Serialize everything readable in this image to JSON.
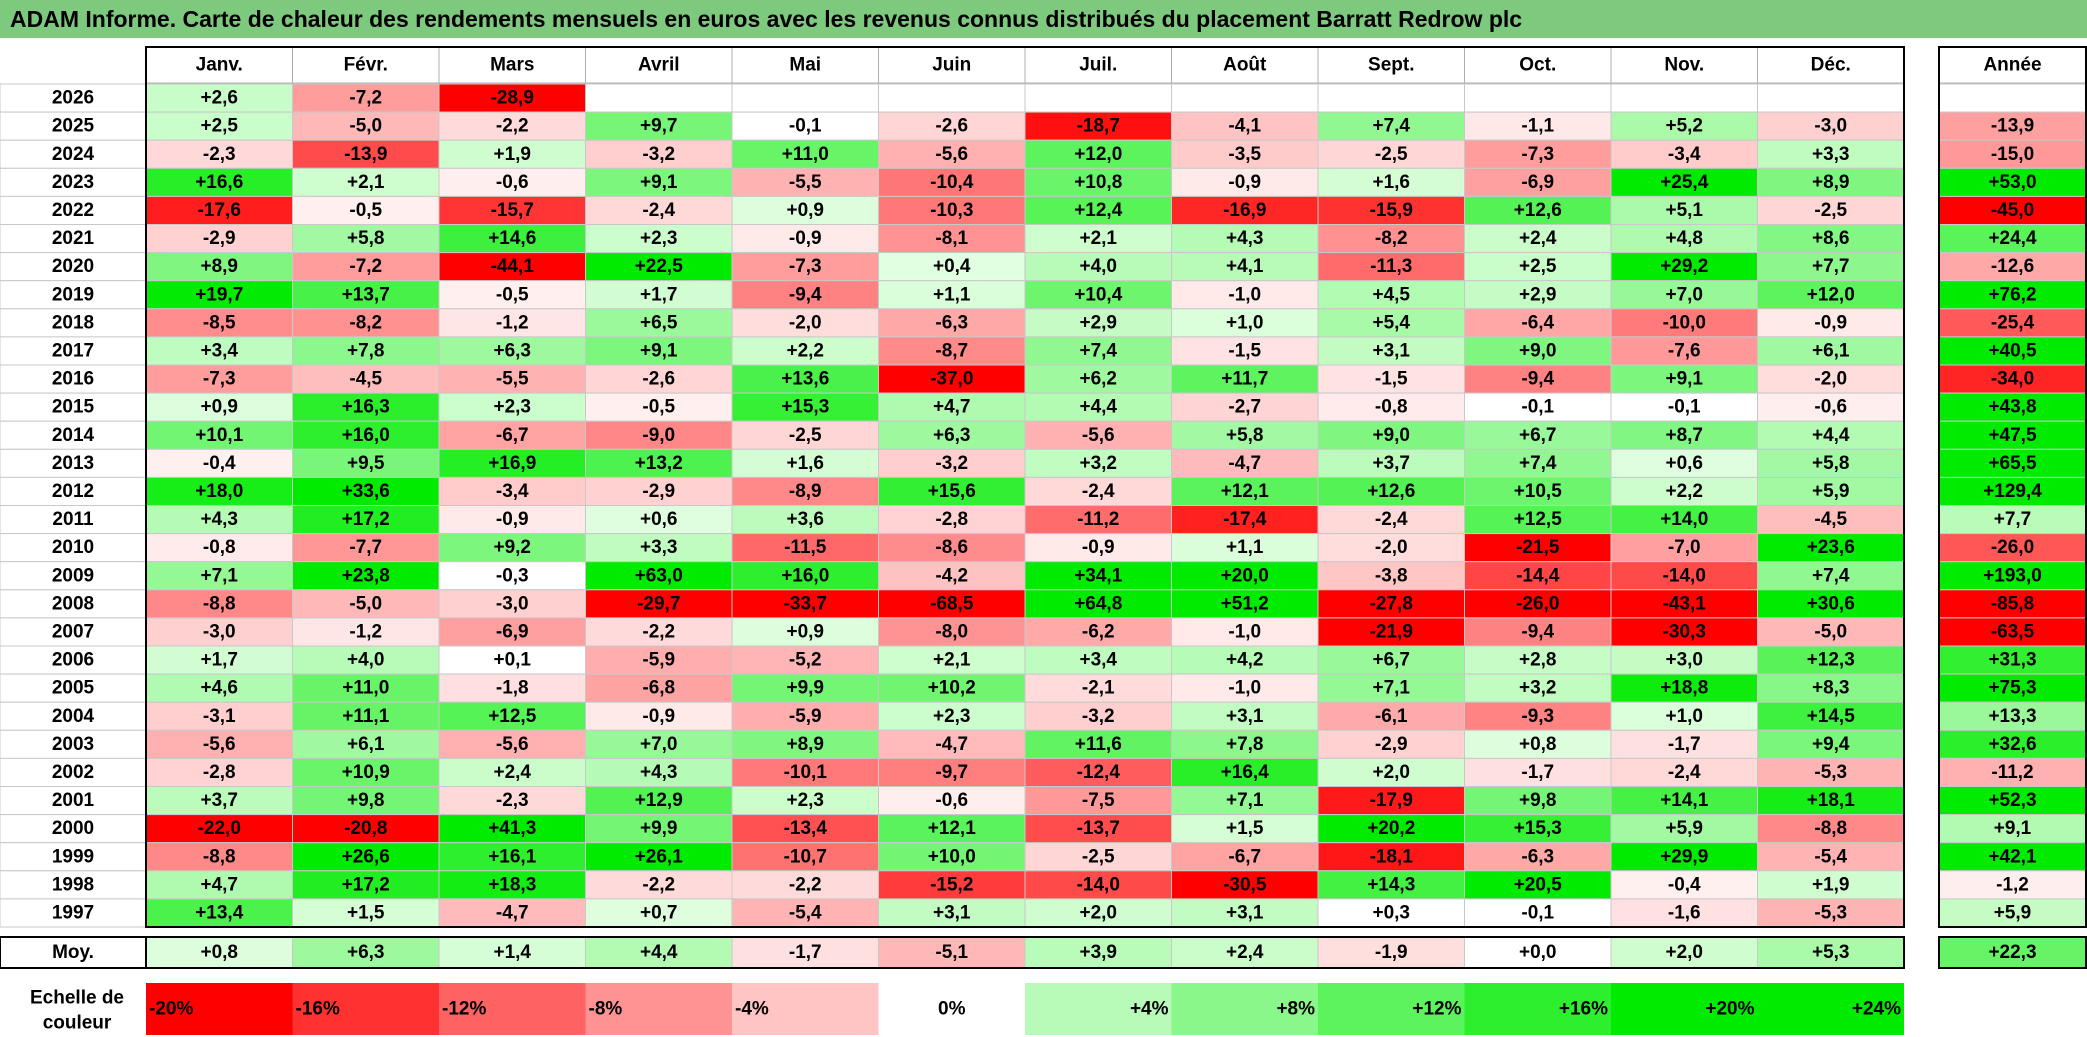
{
  "title": "ADAM Informe. Carte de chaleur des rendements mensuels en euros avec les revenus connus distribués du placement Barratt Redrow plc",
  "chart_data": {
    "type": "heatmap",
    "months": [
      "Janv.",
      "Févr.",
      "Mars",
      "Avril",
      "Mai",
      "Juin",
      "Juil.",
      "Août",
      "Sept.",
      "Oct.",
      "Nov.",
      "Déc."
    ],
    "year_header": "Année",
    "rows": [
      {
        "year": "2026",
        "values": [
          "+2,6",
          "-7,2",
          "-28,9",
          "",
          "",
          "",
          "",
          "",
          "",
          "",
          "",
          ""
        ],
        "annual": ""
      },
      {
        "year": "2025",
        "values": [
          "+2,5",
          "-5,0",
          "-2,2",
          "+9,7",
          "-0,1",
          "-2,6",
          "-18,7",
          "-4,1",
          "+7,4",
          "-1,1",
          "+5,2",
          "-3,0"
        ],
        "annual": "-13,9"
      },
      {
        "year": "2024",
        "values": [
          "-2,3",
          "-13,9",
          "+1,9",
          "-3,2",
          "+11,0",
          "-5,6",
          "+12,0",
          "-3,5",
          "-2,5",
          "-7,3",
          "-3,4",
          "+3,3"
        ],
        "annual": "-15,0"
      },
      {
        "year": "2023",
        "values": [
          "+16,6",
          "+2,1",
          "-0,6",
          "+9,1",
          "-5,5",
          "-10,4",
          "+10,8",
          "-0,9",
          "+1,6",
          "-6,9",
          "+25,4",
          "+8,9"
        ],
        "annual": "+53,0"
      },
      {
        "year": "2022",
        "values": [
          "-17,6",
          "-0,5",
          "-15,7",
          "-2,4",
          "+0,9",
          "-10,3",
          "+12,4",
          "-16,9",
          "-15,9",
          "+12,6",
          "+5,1",
          "-2,5"
        ],
        "annual": "-45,0"
      },
      {
        "year": "2021",
        "values": [
          "-2,9",
          "+5,8",
          "+14,6",
          "+2,3",
          "-0,9",
          "-8,1",
          "+2,1",
          "+4,3",
          "-8,2",
          "+2,4",
          "+4,8",
          "+8,6"
        ],
        "annual": "+24,4"
      },
      {
        "year": "2020",
        "values": [
          "+8,9",
          "-7,2",
          "-44,1",
          "+22,5",
          "-7,3",
          "+0,4",
          "+4,0",
          "+4,1",
          "-11,3",
          "+2,5",
          "+29,2",
          "+7,7"
        ],
        "annual": "-12,6"
      },
      {
        "year": "2019",
        "values": [
          "+19,7",
          "+13,7",
          "-0,5",
          "+1,7",
          "-9,4",
          "+1,1",
          "+10,4",
          "-1,0",
          "+4,5",
          "+2,9",
          "+7,0",
          "+12,0"
        ],
        "annual": "+76,2"
      },
      {
        "year": "2018",
        "values": [
          "-8,5",
          "-8,2",
          "-1,2",
          "+6,5",
          "-2,0",
          "-6,3",
          "+2,9",
          "+1,0",
          "+5,4",
          "-6,4",
          "-10,0",
          "-0,9"
        ],
        "annual": "-25,4"
      },
      {
        "year": "2017",
        "values": [
          "+3,4",
          "+7,8",
          "+6,3",
          "+9,1",
          "+2,2",
          "-8,7",
          "+7,4",
          "-1,5",
          "+3,1",
          "+9,0",
          "-7,6",
          "+6,1"
        ],
        "annual": "+40,5"
      },
      {
        "year": "2016",
        "values": [
          "-7,3",
          "-4,5",
          "-5,5",
          "-2,6",
          "+13,6",
          "-37,0",
          "+6,2",
          "+11,7",
          "-1,5",
          "-9,4",
          "+9,1",
          "-2,0"
        ],
        "annual": "-34,0"
      },
      {
        "year": "2015",
        "values": [
          "+0,9",
          "+16,3",
          "+2,3",
          "-0,5",
          "+15,3",
          "+4,7",
          "+4,4",
          "-2,7",
          "-0,8",
          "-0,1",
          "-0,1",
          "-0,6"
        ],
        "annual": "+43,8"
      },
      {
        "year": "2014",
        "values": [
          "+10,1",
          "+16,0",
          "-6,7",
          "-9,0",
          "-2,5",
          "+6,3",
          "-5,6",
          "+5,8",
          "+9,0",
          "+6,7",
          "+8,7",
          "+4,4"
        ],
        "annual": "+47,5"
      },
      {
        "year": "2013",
        "values": [
          "-0,4",
          "+9,5",
          "+16,9",
          "+13,2",
          "+1,6",
          "-3,2",
          "+3,2",
          "-4,7",
          "+3,7",
          "+7,4",
          "+0,6",
          "+5,8"
        ],
        "annual": "+65,5"
      },
      {
        "year": "2012",
        "values": [
          "+18,0",
          "+33,6",
          "-3,4",
          "-2,9",
          "-8,9",
          "+15,6",
          "-2,4",
          "+12,1",
          "+12,6",
          "+10,5",
          "+2,2",
          "+5,9"
        ],
        "annual": "+129,4"
      },
      {
        "year": "2011",
        "values": [
          "+4,3",
          "+17,2",
          "-0,9",
          "+0,6",
          "+3,6",
          "-2,8",
          "-11,2",
          "-17,4",
          "-2,4",
          "+12,5",
          "+14,0",
          "-4,5"
        ],
        "annual": "+7,7"
      },
      {
        "year": "2010",
        "values": [
          "-0,8",
          "-7,7",
          "+9,2",
          "+3,3",
          "-11,5",
          "-8,6",
          "-0,9",
          "+1,1",
          "-2,0",
          "-21,5",
          "-7,0",
          "+23,6"
        ],
        "annual": "-26,0"
      },
      {
        "year": "2009",
        "values": [
          "+7,1",
          "+23,8",
          "-0,3",
          "+63,0",
          "+16,0",
          "-4,2",
          "+34,1",
          "+20,0",
          "-3,8",
          "-14,4",
          "-14,0",
          "+7,4"
        ],
        "annual": "+193,0"
      },
      {
        "year": "2008",
        "values": [
          "-8,8",
          "-5,0",
          "-3,0",
          "-29,7",
          "-33,7",
          "-68,5",
          "+64,8",
          "+51,2",
          "-27,8",
          "-26,0",
          "-43,1",
          "+30,6"
        ],
        "annual": "-85,8"
      },
      {
        "year": "2007",
        "values": [
          "-3,0",
          "-1,2",
          "-6,9",
          "-2,2",
          "+0,9",
          "-8,0",
          "-6,2",
          "-1,0",
          "-21,9",
          "-9,4",
          "-30,3",
          "-5,0"
        ],
        "annual": "-63,5"
      },
      {
        "year": "2006",
        "values": [
          "+1,7",
          "+4,0",
          "+0,1",
          "-5,9",
          "-5,2",
          "+2,1",
          "+3,4",
          "+4,2",
          "+6,7",
          "+2,8",
          "+3,0",
          "+12,3"
        ],
        "annual": "+31,3"
      },
      {
        "year": "2005",
        "values": [
          "+4,6",
          "+11,0",
          "-1,8",
          "-6,8",
          "+9,9",
          "+10,2",
          "-2,1",
          "-1,0",
          "+7,1",
          "+3,2",
          "+18,8",
          "+8,3"
        ],
        "annual": "+75,3"
      },
      {
        "year": "2004",
        "values": [
          "-3,1",
          "+11,1",
          "+12,5",
          "-0,9",
          "-5,9",
          "+2,3",
          "-3,2",
          "+3,1",
          "-6,1",
          "-9,3",
          "+1,0",
          "+14,5"
        ],
        "annual": "+13,3"
      },
      {
        "year": "2003",
        "values": [
          "-5,6",
          "+6,1",
          "-5,6",
          "+7,0",
          "+8,9",
          "-4,7",
          "+11,6",
          "+7,8",
          "-2,9",
          "+0,8",
          "-1,7",
          "+9,4"
        ],
        "annual": "+32,6"
      },
      {
        "year": "2002",
        "values": [
          "-2,8",
          "+10,9",
          "+2,4",
          "+4,3",
          "-10,1",
          "-9,7",
          "-12,4",
          "+16,4",
          "+2,0",
          "-1,7",
          "-2,4",
          "-5,3"
        ],
        "annual": "-11,2"
      },
      {
        "year": "2001",
        "values": [
          "+3,7",
          "+9,8",
          "-2,3",
          "+12,9",
          "+2,3",
          "-0,6",
          "-7,5",
          "+7,1",
          "-17,9",
          "+9,8",
          "+14,1",
          "+18,1"
        ],
        "annual": "+52,3"
      },
      {
        "year": "2000",
        "values": [
          "-22,0",
          "-20,8",
          "+41,3",
          "+9,9",
          "-13,4",
          "+12,1",
          "-13,7",
          "+1,5",
          "+20,2",
          "+15,3",
          "+5,9",
          "-8,8"
        ],
        "annual": "+9,1"
      },
      {
        "year": "1999",
        "values": [
          "-8,8",
          "+26,6",
          "+16,1",
          "+26,1",
          "-10,7",
          "+10,0",
          "-2,5",
          "-6,7",
          "-18,1",
          "-6,3",
          "+29,9",
          "-5,4"
        ],
        "annual": "+42,1"
      },
      {
        "year": "1998",
        "values": [
          "+4,7",
          "+17,2",
          "+18,3",
          "-2,2",
          "-2,2",
          "-15,2",
          "-14,0",
          "-30,5",
          "+14,3",
          "+20,5",
          "-0,4",
          "+1,9"
        ],
        "annual": "-1,2"
      },
      {
        "year": "1997",
        "values": [
          "+13,4",
          "+1,5",
          "-4,7",
          "+0,7",
          "-5,4",
          "+3,1",
          "+2,0",
          "+3,1",
          "+0,3",
          "-0,1",
          "-1,6",
          "-5,3"
        ],
        "annual": "+5,9"
      }
    ],
    "average": {
      "label": "Moy.",
      "values": [
        "+0,8",
        "+6,3",
        "+1,4",
        "+4,4",
        "-1,7",
        "-5,1",
        "+3,9",
        "+2,4",
        "-1,9",
        "+0,0",
        "+2,0",
        "+5,3"
      ],
      "annual": "+22,3"
    },
    "scale": {
      "label_line1": "Echelle de",
      "label_line2": "couleur",
      "items": [
        "-20%",
        "-16%",
        "-12%",
        "-8%",
        "-4%",
        "0%",
        "+4%",
        "+8%",
        "+12%",
        "+16%",
        "+20%",
        "+24%"
      ]
    },
    "colors": {
      "negative_max": "#ff0000",
      "neutral": "#ffffff",
      "positive_max": "#00ee00",
      "title_bg": "#7dc97d"
    }
  }
}
